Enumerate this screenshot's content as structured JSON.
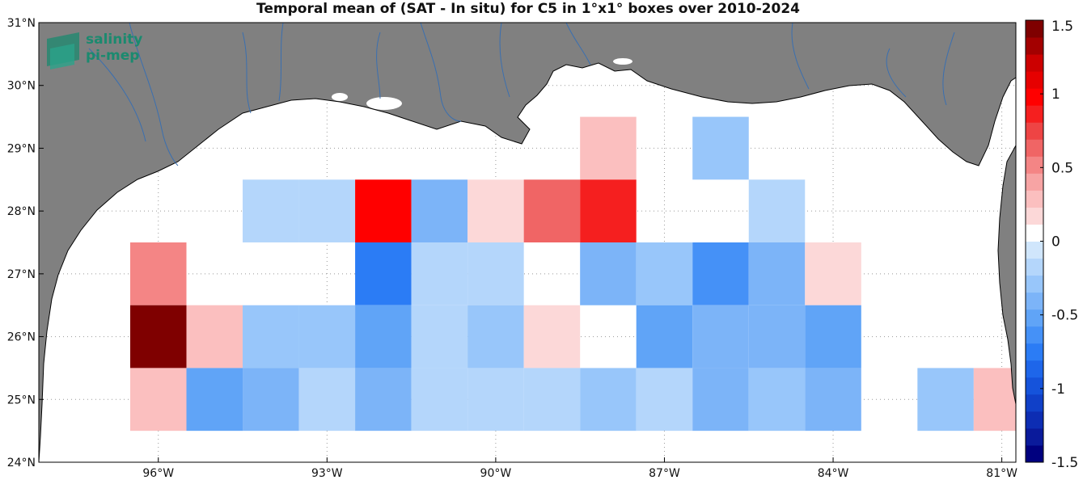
{
  "chart_data": {
    "type": "heatmap",
    "title": "Temporal mean of (SAT - In situ) for C5 in 1°x1° boxes over 2010-2024",
    "x_ticks": [
      "96°W",
      "93°W",
      "90°W",
      "87°W",
      "84°W",
      "81°W"
    ],
    "y_ticks": [
      "24°N",
      "25°N",
      "26°N",
      "27°N",
      "28°N",
      "29°N",
      "30°N",
      "31°N"
    ],
    "colorbar": {
      "ticks": [
        "1.5",
        "1",
        "0.5",
        "0",
        "-0.5",
        "-1",
        "-1.5"
      ],
      "range": [
        -1.5,
        1.5
      ],
      "colors": [
        "#00007f",
        "#0a1a9b",
        "#0d2db3",
        "#1040c8",
        "#1553db",
        "#1e66ea",
        "#2b7cf5",
        "#4591f7",
        "#60a4f7",
        "#7cb4f8",
        "#98c6fa",
        "#b4d6fb",
        "#d0e6fc",
        "#ffffff",
        "#fcd8d8",
        "#fbbfbf",
        "#f7a4a4",
        "#f48585",
        "#f06565",
        "#ee4444",
        "#f51f1f",
        "#ff0000",
        "#e60000",
        "#cc0000",
        "#a30000",
        "#7f0000"
      ]
    },
    "cells_note": "values are lon/lat centers in degrees (negative lon = W) and mean difference",
    "cells": [
      {
        "lon": -88,
        "lat": 29,
        "value": 0.3
      },
      {
        "lon": -86,
        "lat": 29,
        "value": -0.25
      },
      {
        "lon": -94,
        "lat": 28,
        "value": -0.12
      },
      {
        "lon": -93,
        "lat": 28,
        "value": -0.12
      },
      {
        "lon": -92,
        "lat": 28,
        "value": 0.95
      },
      {
        "lon": -91,
        "lat": 28,
        "value": -0.4
      },
      {
        "lon": -90,
        "lat": 28,
        "value": 0.15
      },
      {
        "lon": -89,
        "lat": 28,
        "value": 0.65
      },
      {
        "lon": -88,
        "lat": 28,
        "value": 0.9
      },
      {
        "lon": -85,
        "lat": 28,
        "value": -0.12
      },
      {
        "lon": -96,
        "lat": 27,
        "value": 0.55
      },
      {
        "lon": -92,
        "lat": 27,
        "value": -0.7
      },
      {
        "lon": -91,
        "lat": 27,
        "value": -0.12
      },
      {
        "lon": -90,
        "lat": 27,
        "value": -0.12
      },
      {
        "lon": -88,
        "lat": 27,
        "value": -0.4
      },
      {
        "lon": -87,
        "lat": 27,
        "value": -0.25
      },
      {
        "lon": -86,
        "lat": 27,
        "value": -0.6
      },
      {
        "lon": -85,
        "lat": 27,
        "value": -0.4
      },
      {
        "lon": -84,
        "lat": 27,
        "value": 0.15
      },
      {
        "lon": -96,
        "lat": 26,
        "value": 1.4
      },
      {
        "lon": -95,
        "lat": 26,
        "value": 0.3
      },
      {
        "lon": -94,
        "lat": 26,
        "value": -0.25
      },
      {
        "lon": -93,
        "lat": 26,
        "value": -0.25
      },
      {
        "lon": -92,
        "lat": 26,
        "value": -0.5
      },
      {
        "lon": -91,
        "lat": 26,
        "value": -0.12
      },
      {
        "lon": -90,
        "lat": 26,
        "value": -0.25
      },
      {
        "lon": -89,
        "lat": 26,
        "value": 0.15
      },
      {
        "lon": -87,
        "lat": 26,
        "value": -0.5
      },
      {
        "lon": -86,
        "lat": 26,
        "value": -0.4
      },
      {
        "lon": -85,
        "lat": 26,
        "value": -0.4
      },
      {
        "lon": -84,
        "lat": 26,
        "value": -0.5
      },
      {
        "lon": -96,
        "lat": 25,
        "value": 0.3
      },
      {
        "lon": -95,
        "lat": 25,
        "value": -0.5
      },
      {
        "lon": -94,
        "lat": 25,
        "value": -0.4
      },
      {
        "lon": -93,
        "lat": 25,
        "value": -0.12
      },
      {
        "lon": -92,
        "lat": 25,
        "value": -0.4
      },
      {
        "lon": -91,
        "lat": 25,
        "value": -0.12
      },
      {
        "lon": -90,
        "lat": 25,
        "value": -0.12
      },
      {
        "lon": -89,
        "lat": 25,
        "value": -0.12
      },
      {
        "lon": -88,
        "lat": 25,
        "value": -0.25
      },
      {
        "lon": -87,
        "lat": 25,
        "value": -0.12
      },
      {
        "lon": -86,
        "lat": 25,
        "value": -0.4
      },
      {
        "lon": -85,
        "lat": 25,
        "value": -0.25
      },
      {
        "lon": -84,
        "lat": 25,
        "value": -0.4
      },
      {
        "lon": -82,
        "lat": 25,
        "value": -0.25
      },
      {
        "lon": -81,
        "lat": 25,
        "value": 0.3
      }
    ]
  },
  "logo": {
    "line1": "salinity",
    "line2": "pi-mep"
  },
  "colors": {
    "land": "#808080",
    "ocean": "#ffffff",
    "rivers": "#3a6fb0",
    "logo": "#1b8a6f"
  }
}
